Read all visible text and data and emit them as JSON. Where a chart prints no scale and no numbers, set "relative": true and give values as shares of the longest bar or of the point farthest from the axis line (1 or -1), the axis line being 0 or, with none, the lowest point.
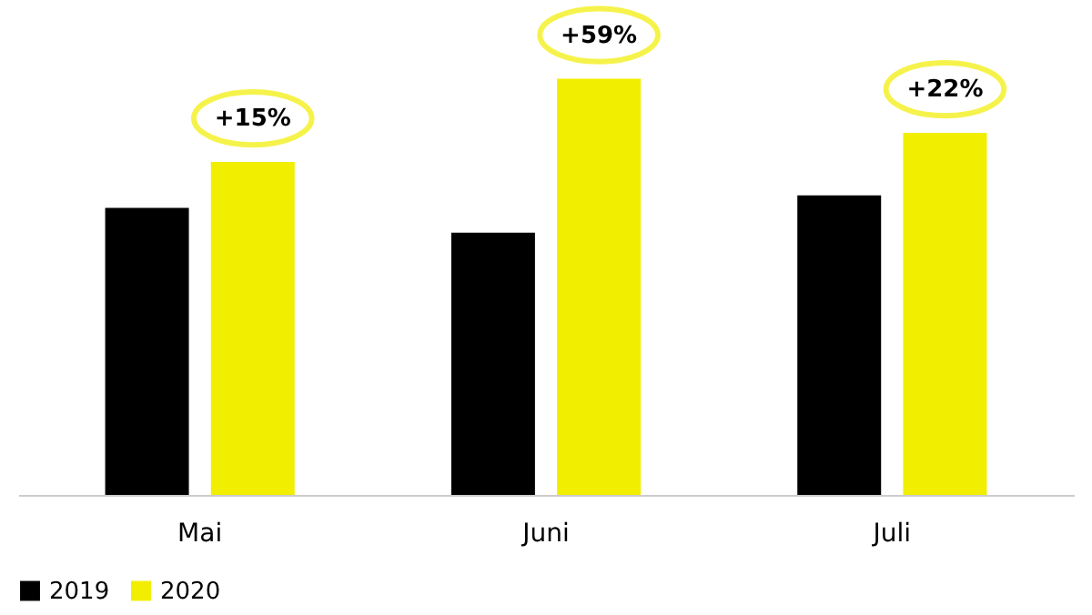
{
  "chart_data": {
    "type": "bar",
    "relative": true,
    "categories": [
      "Mai",
      "Juni",
      "Juli"
    ],
    "series": [
      {
        "name": "2019",
        "color": "#000000",
        "values": [
          0.69,
          0.63,
          0.72
        ]
      },
      {
        "name": "2020",
        "color": "#f2ee00",
        "values": [
          0.8,
          1.0,
          0.87
        ]
      }
    ],
    "annotations": [
      "+15%",
      "+59%",
      "+22%"
    ],
    "legend": "bottom"
  }
}
